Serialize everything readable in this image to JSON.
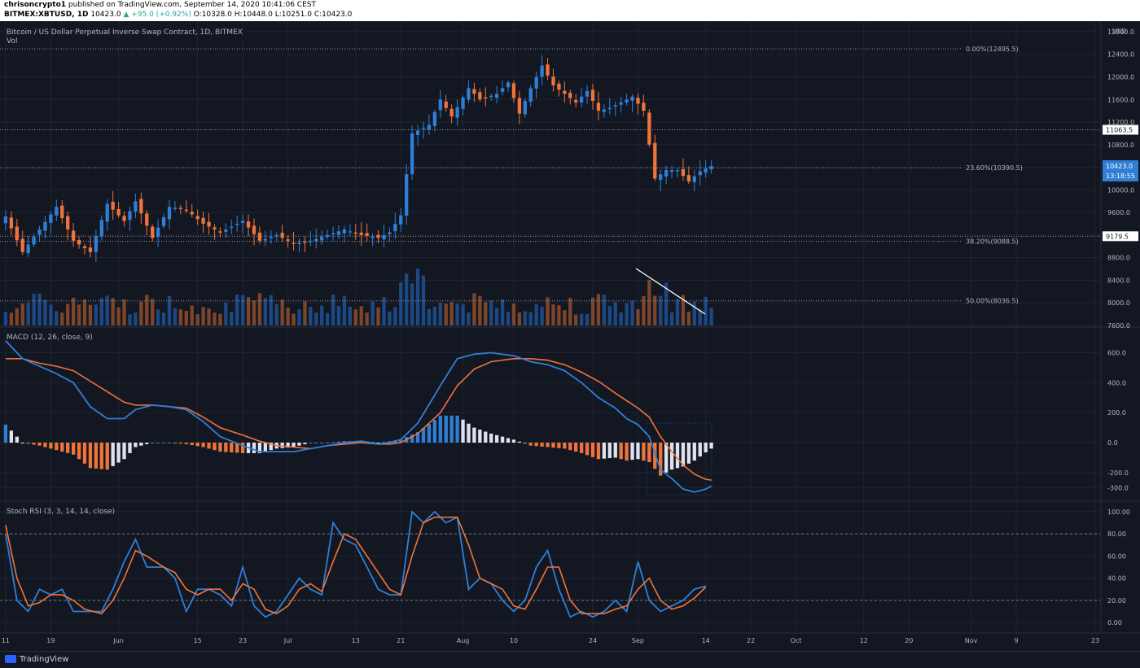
{
  "header": {
    "publisher": "chrisoncrypto1",
    "published_text": "published on TradingView.com, September 14, 2020 10:41:06 CEST",
    "symbol_line": "BITMEX:XBTUSD, 1D",
    "last": "10423.0",
    "change": "▲ +95.0 (+0.92%)",
    "o_label": "O:",
    "o_val": "10328.0",
    "h_label": "H:",
    "h_val": "10448.0",
    "l_label": "L:",
    "l_val": "10251.0",
    "c_label": "C:",
    "c_val": "10423.0"
  },
  "footer": {
    "brand": "TradingView"
  },
  "colors": {
    "bg": "#131722",
    "up": "#2f7fd6",
    "down": "#f0743a",
    "grid": "#1f2433",
    "text": "#b2b5be",
    "white": "#ffffff"
  },
  "chart_data": [
    {
      "type": "candlestick",
      "title": "Bitcoin / US Dollar Perpetual Inverse Swap Contract, 1D, BITMEX",
      "subtitle": "Vol",
      "currency": "USD",
      "yaxis_ticks": [
        "12800.0",
        "12400.0",
        "12000.0",
        "11600.0",
        "11200.0",
        "10800.0",
        "10400.0",
        "10000.0",
        "9600.0",
        "9200.0",
        "8800.0",
        "8400.0",
        "8000.0",
        "7600.0"
      ],
      "ylim": [
        7600,
        12900
      ],
      "x_tick_labels": [
        "11",
        "19",
        "Jun",
        "15",
        "23",
        "Jul",
        "13",
        "21",
        "Aug",
        "10",
        "24",
        "Sep",
        "14",
        "22",
        "Oct",
        "12",
        "20",
        "Nov",
        "9",
        "23"
      ],
      "x_tick_days": [
        0,
        8,
        20,
        34,
        42,
        50,
        62,
        70,
        81,
        90,
        104,
        112,
        124,
        132,
        140,
        152,
        160,
        171,
        179,
        193
      ],
      "day_range": [
        -1,
        194
      ],
      "fib_levels": [
        {
          "label": "0.00%(12495.5)",
          "price": 12495.5
        },
        {
          "label": "23.60%(10390.5)",
          "price": 10390.5
        },
        {
          "label": "38.20%(9088.5)",
          "price": 9088.5
        },
        {
          "label": "50.00%(8036.5)",
          "price": 8036.5
        }
      ],
      "hlines": [
        {
          "label": "11063.5",
          "price": 11063.5
        },
        {
          "label": "9179.5",
          "price": 9179.5
        }
      ],
      "last_price": {
        "label": "10423.0",
        "countdown": "13:18:55",
        "price": 10423.0
      },
      "close_path": [
        [
          0,
          9530
        ],
        [
          3,
          8900
        ],
        [
          6,
          9300
        ],
        [
          9,
          9700
        ],
        [
          12,
          9100
        ],
        [
          15,
          8900
        ],
        [
          18,
          9750
        ],
        [
          21,
          9450
        ],
        [
          23,
          9800
        ],
        [
          26,
          9150
        ],
        [
          29,
          9700
        ],
        [
          32,
          9650
        ],
        [
          35,
          9400
        ],
        [
          38,
          9250
        ],
        [
          42,
          9450
        ],
        [
          45,
          9100
        ],
        [
          48,
          9200
        ],
        [
          51,
          9050
        ],
        [
          54,
          9100
        ],
        [
          57,
          9200
        ],
        [
          60,
          9300
        ],
        [
          63,
          9200
        ],
        [
          66,
          9150
        ],
        [
          68,
          9250
        ],
        [
          70,
          9550
        ],
        [
          72,
          11000
        ],
        [
          75,
          11150
        ],
        [
          77,
          11600
        ],
        [
          79,
          11300
        ],
        [
          82,
          11800
        ],
        [
          84,
          11600
        ],
        [
          87,
          11700
        ],
        [
          89,
          11900
        ],
        [
          91,
          11350
        ],
        [
          93,
          11800
        ],
        [
          95,
          12200
        ],
        [
          97,
          11850
        ],
        [
          99,
          11700
        ],
        [
          101,
          11550
        ],
        [
          103,
          11750
        ],
        [
          105,
          11400
        ],
        [
          107,
          11450
        ],
        [
          109,
          11550
        ],
        [
          111,
          11650
        ],
        [
          113,
          11400
        ],
        [
          115,
          10200
        ],
        [
          117,
          10350
        ],
        [
          119,
          10350
        ],
        [
          121,
          10150
        ],
        [
          123,
          10330
        ],
        [
          125,
          10423
        ]
      ],
      "volume_ylim": [
        0,
        100
      ]
    },
    {
      "type": "macd",
      "title": "MACD (12, 26, close, 9)",
      "yaxis_ticks": [
        "600.0",
        "400.0",
        "200.0",
        "0.0",
        "-200.0",
        "-300.0"
      ],
      "ylim": [
        -380,
        760
      ],
      "macd_path": [
        [
          0,
          680
        ],
        [
          3,
          560
        ],
        [
          6,
          510
        ],
        [
          9,
          460
        ],
        [
          12,
          400
        ],
        [
          15,
          240
        ],
        [
          18,
          160
        ],
        [
          21,
          160
        ],
        [
          23,
          220
        ],
        [
          26,
          250
        ],
        [
          29,
          240
        ],
        [
          32,
          220
        ],
        [
          35,
          140
        ],
        [
          38,
          40
        ],
        [
          42,
          -20
        ],
        [
          45,
          -60
        ],
        [
          48,
          -60
        ],
        [
          51,
          -60
        ],
        [
          54,
          -40
        ],
        [
          57,
          -20
        ],
        [
          60,
          0
        ],
        [
          63,
          10
        ],
        [
          66,
          -10
        ],
        [
          68,
          0
        ],
        [
          70,
          20
        ],
        [
          73,
          130
        ],
        [
          77,
          380
        ],
        [
          80,
          560
        ],
        [
          83,
          590
        ],
        [
          86,
          600
        ],
        [
          90,
          580
        ],
        [
          93,
          540
        ],
        [
          96,
          520
        ],
        [
          99,
          480
        ],
        [
          102,
          400
        ],
        [
          105,
          300
        ],
        [
          108,
          230
        ],
        [
          110,
          160
        ],
        [
          112,
          120
        ],
        [
          114,
          40
        ],
        [
          116,
          -180
        ],
        [
          118,
          -240
        ],
        [
          120,
          -310
        ],
        [
          122,
          -330
        ],
        [
          124,
          -310
        ],
        [
          125,
          -290
        ]
      ],
      "signal_path": [
        [
          0,
          560
        ],
        [
          3,
          560
        ],
        [
          6,
          530
        ],
        [
          9,
          510
        ],
        [
          12,
          480
        ],
        [
          15,
          410
        ],
        [
          18,
          340
        ],
        [
          21,
          270
        ],
        [
          23,
          250
        ],
        [
          26,
          250
        ],
        [
          29,
          240
        ],
        [
          32,
          230
        ],
        [
          35,
          170
        ],
        [
          38,
          100
        ],
        [
          42,
          50
        ],
        [
          45,
          10
        ],
        [
          48,
          -20
        ],
        [
          51,
          -30
        ],
        [
          54,
          -40
        ],
        [
          57,
          -20
        ],
        [
          60,
          -10
        ],
        [
          63,
          0
        ],
        [
          66,
          -10
        ],
        [
          68,
          -10
        ],
        [
          70,
          0
        ],
        [
          73,
          60
        ],
        [
          77,
          200
        ],
        [
          80,
          380
        ],
        [
          83,
          490
        ],
        [
          86,
          540
        ],
        [
          90,
          560
        ],
        [
          93,
          560
        ],
        [
          96,
          550
        ],
        [
          99,
          520
        ],
        [
          102,
          470
        ],
        [
          105,
          410
        ],
        [
          108,
          330
        ],
        [
          110,
          280
        ],
        [
          112,
          230
        ],
        [
          114,
          170
        ],
        [
          116,
          40
        ],
        [
          118,
          -60
        ],
        [
          120,
          -150
        ],
        [
          122,
          -210
        ],
        [
          124,
          -245
        ],
        [
          125,
          -250
        ]
      ]
    },
    {
      "type": "line",
      "title": "Stoch RSI (3, 3, 14, 14, close)",
      "yaxis_ticks": [
        "100.00",
        "80.00",
        "60.00",
        "40.00",
        "20.00",
        "0.00"
      ],
      "ylim": [
        -8,
        108
      ],
      "k_path": [
        [
          0,
          80
        ],
        [
          2,
          20
        ],
        [
          4,
          10
        ],
        [
          6,
          30
        ],
        [
          8,
          25
        ],
        [
          10,
          30
        ],
        [
          12,
          10
        ],
        [
          14,
          10
        ],
        [
          17,
          10
        ],
        [
          19,
          30
        ],
        [
          21,
          55
        ],
        [
          23,
          75
        ],
        [
          25,
          50
        ],
        [
          28,
          50
        ],
        [
          30,
          40
        ],
        [
          32,
          10
        ],
        [
          34,
          30
        ],
        [
          36,
          30
        ],
        [
          38,
          25
        ],
        [
          40,
          15
        ],
        [
          42,
          50
        ],
        [
          44,
          15
        ],
        [
          46,
          5
        ],
        [
          48,
          10
        ],
        [
          50,
          25
        ],
        [
          52,
          40
        ],
        [
          54,
          30
        ],
        [
          56,
          25
        ],
        [
          58,
          90
        ],
        [
          60,
          75
        ],
        [
          62,
          70
        ],
        [
          64,
          50
        ],
        [
          66,
          30
        ],
        [
          68,
          25
        ],
        [
          70,
          25
        ],
        [
          72,
          100
        ],
        [
          74,
          90
        ],
        [
          76,
          100
        ],
        [
          78,
          90
        ],
        [
          80,
          95
        ],
        [
          82,
          30
        ],
        [
          84,
          40
        ],
        [
          86,
          35
        ],
        [
          88,
          20
        ],
        [
          90,
          10
        ],
        [
          92,
          20
        ],
        [
          94,
          50
        ],
        [
          96,
          65
        ],
        [
          98,
          30
        ],
        [
          100,
          5
        ],
        [
          102,
          10
        ],
        [
          104,
          5
        ],
        [
          106,
          10
        ],
        [
          108,
          20
        ],
        [
          110,
          10
        ],
        [
          112,
          55
        ],
        [
          114,
          20
        ],
        [
          116,
          10
        ],
        [
          118,
          15
        ],
        [
          120,
          20
        ],
        [
          122,
          30
        ],
        [
          124,
          33
        ]
      ],
      "d_path": [
        [
          0,
          88
        ],
        [
          2,
          40
        ],
        [
          4,
          15
        ],
        [
          6,
          18
        ],
        [
          8,
          25
        ],
        [
          10,
          25
        ],
        [
          12,
          20
        ],
        [
          14,
          12
        ],
        [
          17,
          8
        ],
        [
          19,
          20
        ],
        [
          21,
          40
        ],
        [
          23,
          65
        ],
        [
          25,
          60
        ],
        [
          28,
          50
        ],
        [
          30,
          45
        ],
        [
          32,
          30
        ],
        [
          34,
          25
        ],
        [
          36,
          30
        ],
        [
          38,
          30
        ],
        [
          40,
          20
        ],
        [
          42,
          35
        ],
        [
          44,
          30
        ],
        [
          46,
          12
        ],
        [
          48,
          8
        ],
        [
          50,
          15
        ],
        [
          52,
          30
        ],
        [
          54,
          35
        ],
        [
          56,
          28
        ],
        [
          58,
          55
        ],
        [
          60,
          80
        ],
        [
          62,
          75
        ],
        [
          64,
          60
        ],
        [
          66,
          45
        ],
        [
          68,
          30
        ],
        [
          70,
          25
        ],
        [
          72,
          60
        ],
        [
          74,
          90
        ],
        [
          76,
          95
        ],
        [
          78,
          95
        ],
        [
          80,
          95
        ],
        [
          82,
          70
        ],
        [
          84,
          40
        ],
        [
          86,
          35
        ],
        [
          88,
          30
        ],
        [
          90,
          15
        ],
        [
          92,
          12
        ],
        [
          94,
          30
        ],
        [
          96,
          50
        ],
        [
          98,
          50
        ],
        [
          100,
          20
        ],
        [
          102,
          8
        ],
        [
          104,
          8
        ],
        [
          106,
          8
        ],
        [
          108,
          12
        ],
        [
          110,
          15
        ],
        [
          112,
          30
        ],
        [
          114,
          40
        ],
        [
          116,
          20
        ],
        [
          118,
          12
        ],
        [
          120,
          15
        ],
        [
          122,
          22
        ],
        [
          124,
          32
        ]
      ],
      "hlines": [
        80,
        20
      ]
    }
  ]
}
